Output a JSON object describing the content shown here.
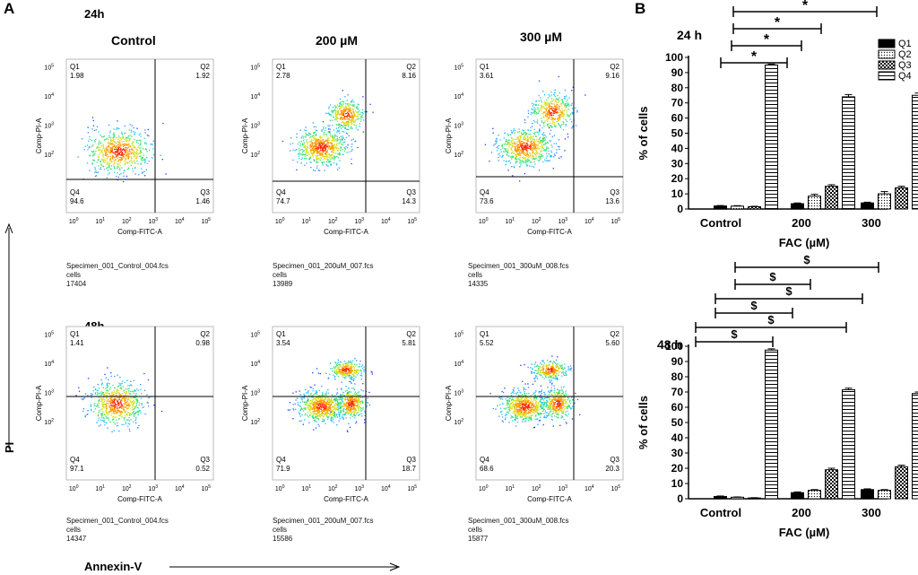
{
  "panel_a": {
    "letter": "A",
    "y_axis_label": "PI",
    "x_axis_label": "Annexin-V",
    "rows": [
      {
        "time_label": "24h",
        "plots": [
          {
            "condition": "Control",
            "q1": "1.98",
            "q2": "1.92",
            "q3": "1.46",
            "q4": "94.6",
            "file": "Specimen_001_Control_004.fcs",
            "gate": "cells",
            "count": "17404"
          },
          {
            "condition": "200 µM",
            "q1": "2.78",
            "q2": "8.16",
            "q3": "14.3",
            "q4": "74.7",
            "file": "Specimen_001_200uM_007.fcs",
            "gate": "cells",
            "count": "13989"
          },
          {
            "condition": "300 µM",
            "q1": "3.61",
            "q2": "9.16",
            "q3": "13.6",
            "q4": "73.6",
            "file": "Specimen_001_300uM_008.fcs",
            "gate": "cells",
            "count": "14335"
          }
        ]
      },
      {
        "time_label": "48h",
        "plots": [
          {
            "condition": "",
            "q1": "1.41",
            "q2": "0.98",
            "q3": "0.52",
            "q4": "97.1",
            "file": "Specimen_001_Control_004.fcs",
            "gate": "cells",
            "count": "14347"
          },
          {
            "condition": "",
            "q1": "3.54",
            "q2": "5.81",
            "q3": "18.7",
            "q4": "71.9",
            "file": "Specimen_001_200uM_007.fcs",
            "gate": "cells",
            "count": "15586"
          },
          {
            "condition": "",
            "q1": "5.52",
            "q2": "5.60",
            "q3": "20.3",
            "q4": "68.6",
            "file": "Specimen_001_300uM_008.fcs",
            "gate": "cells",
            "count": "15877"
          }
        ]
      }
    ],
    "plot_axis": {
      "x_title": "Comp-FITC-A",
      "y_title": "Comp-PI-A",
      "x_ticks": [
        "10",
        "10",
        "10",
        "10",
        "10",
        "10"
      ],
      "x_exps": [
        "0",
        "1",
        "2",
        "3",
        "4",
        "5"
      ],
      "y_ticks": [
        "10",
        "10",
        "10",
        "10"
      ],
      "y_exps": [
        "2",
        "3",
        "4",
        "5"
      ],
      "q_labels": [
        "Q1",
        "Q2",
        "Q3",
        "Q4"
      ]
    }
  },
  "chart_data": [
    {
      "type": "bar",
      "panel_letter": "B",
      "title": "24 h",
      "xlabel": "FAC (µM)",
      "ylabel": "% of cells",
      "ylim": [
        0,
        100
      ],
      "yticks": [
        "0",
        "10",
        "20",
        "30",
        "40",
        "50",
        "60",
        "70",
        "80",
        "90",
        "100"
      ],
      "categories": [
        "Control",
        "200",
        "300"
      ],
      "series": [
        {
          "name": "Q1",
          "values": [
            2.0,
            3.5,
            4.0
          ],
          "errors": [
            0.3,
            0.5,
            0.5
          ]
        },
        {
          "name": "Q2",
          "values": [
            1.9,
            8.5,
            10.0
          ],
          "errors": [
            0.3,
            1.2,
            1.5
          ]
        },
        {
          "name": "Q3",
          "values": [
            1.5,
            15.0,
            14.0
          ],
          "errors": [
            0.3,
            1.0,
            1.0
          ]
        },
        {
          "name": "Q4",
          "values": [
            95.0,
            74.0,
            75.0
          ],
          "errors": [
            0.5,
            1.5,
            1.5
          ]
        }
      ],
      "legend": [
        "Q1",
        "Q2",
        "Q3",
        "Q4"
      ],
      "significance": [
        {
          "symbol": "*"
        },
        {
          "symbol": "*"
        },
        {
          "symbol": "*"
        },
        {
          "symbol": "*"
        }
      ]
    },
    {
      "type": "bar",
      "title": "48 h",
      "xlabel": "FAC (µM)",
      "ylabel": "% of cells",
      "ylim": [
        0,
        100
      ],
      "yticks": [
        "0",
        "10",
        "20",
        "30",
        "40",
        "50",
        "60",
        "70",
        "80",
        "90",
        "100"
      ],
      "categories": [
        "Control",
        "200",
        "300"
      ],
      "series": [
        {
          "name": "Q1",
          "values": [
            1.5,
            4.0,
            6.0
          ],
          "errors": [
            0.3,
            0.5,
            0.5
          ]
        },
        {
          "name": "Q2",
          "values": [
            1.0,
            5.5,
            5.5
          ],
          "errors": [
            0.2,
            0.5,
            0.5
          ]
        },
        {
          "name": "Q3",
          "values": [
            0.5,
            19.0,
            21.0
          ],
          "errors": [
            0.2,
            1.0,
            1.0
          ]
        },
        {
          "name": "Q4",
          "values": [
            97.5,
            71.5,
            69.0
          ],
          "errors": [
            0.8,
            1.0,
            1.0
          ]
        }
      ],
      "significance": [
        {
          "symbol": "$"
        },
        {
          "symbol": "$"
        },
        {
          "symbol": "$"
        },
        {
          "symbol": "$"
        },
        {
          "symbol": "$"
        },
        {
          "symbol": "$"
        }
      ]
    }
  ]
}
